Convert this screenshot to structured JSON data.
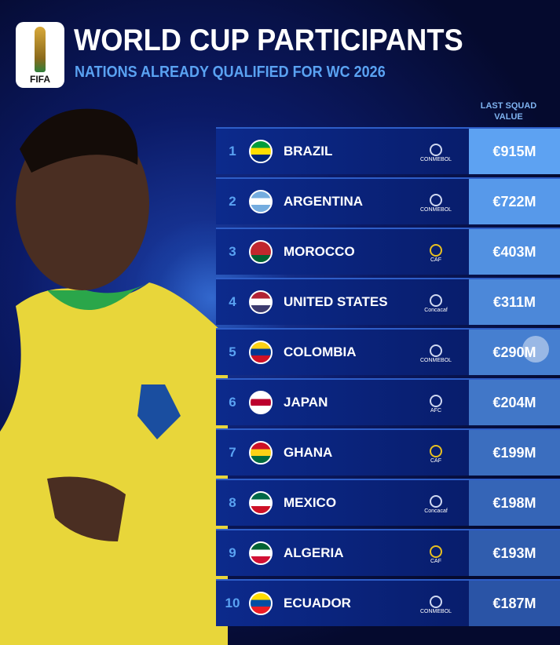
{
  "header": {
    "logo_text": "FIFA",
    "title": "WORLD CUP PARTICIPANTS",
    "subtitle": "NATIONS ALREADY QUALIFIED FOR WC 2026"
  },
  "column_header": "LAST SQUAD VALUE",
  "rows": [
    {
      "rank": "1",
      "country": "BRAZIL",
      "confederation": "CONMEBOL",
      "value": "€915M",
      "flag": [
        "#009c3b",
        "#ffdf00",
        "#002776"
      ]
    },
    {
      "rank": "2",
      "country": "ARGENTINA",
      "confederation": "CONMEBOL",
      "value": "€722M",
      "flag": [
        "#74acdf",
        "#ffffff",
        "#74acdf"
      ]
    },
    {
      "rank": "3",
      "country": "MOROCCO",
      "confederation": "CAF",
      "value": "€403M",
      "flag": [
        "#c1272d",
        "#c1272d",
        "#006233"
      ]
    },
    {
      "rank": "4",
      "country": "UNITED STATES",
      "confederation": "Concacaf",
      "value": "€311M",
      "flag": [
        "#b22234",
        "#ffffff",
        "#3c3b6e"
      ]
    },
    {
      "rank": "5",
      "country": "COLOMBIA",
      "confederation": "CONMEBOL",
      "value": "€290M",
      "flag": [
        "#fcd116",
        "#003893",
        "#ce1126"
      ]
    },
    {
      "rank": "6",
      "country": "JAPAN",
      "confederation": "AFC",
      "value": "€204M",
      "flag": [
        "#ffffff",
        "#bc002d",
        "#ffffff"
      ]
    },
    {
      "rank": "7",
      "country": "GHANA",
      "confederation": "CAF",
      "value": "€199M",
      "flag": [
        "#ce1126",
        "#fcd116",
        "#006b3f"
      ]
    },
    {
      "rank": "8",
      "country": "MEXICO",
      "confederation": "Concacaf",
      "value": "€198M",
      "flag": [
        "#006847",
        "#ffffff",
        "#ce1126"
      ]
    },
    {
      "rank": "9",
      "country": "ALGERIA",
      "confederation": "CAF",
      "value": "€193M",
      "flag": [
        "#006233",
        "#ffffff",
        "#d21034"
      ]
    },
    {
      "rank": "10",
      "country": "ECUADOR",
      "confederation": "CONMEBOL",
      "value": "€187M",
      "flag": [
        "#ffdd00",
        "#034ea2",
        "#ed1c24"
      ]
    }
  ],
  "colors": {
    "value_top": "#5da2f2",
    "value_bottom": "#2a54a6",
    "accent": "#5aa2f2"
  }
}
